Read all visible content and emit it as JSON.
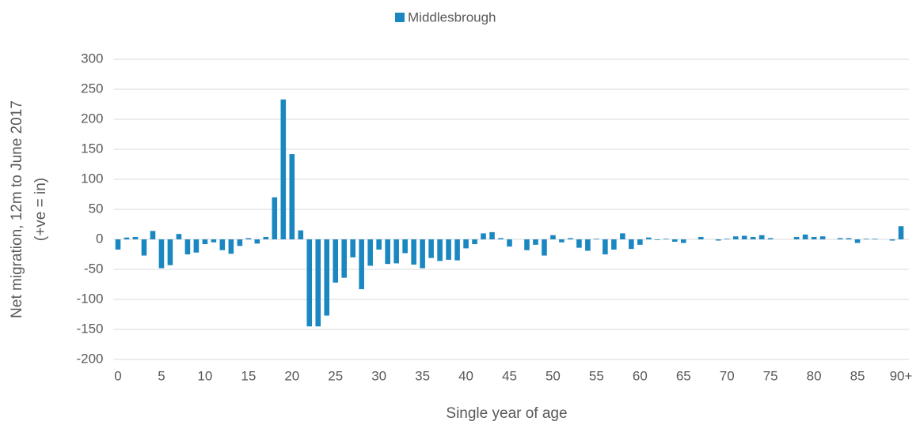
{
  "chart_data": {
    "type": "bar",
    "xlabel": "Single year of age",
    "ylabel": [
      "Net migration, 12m to June 2017",
      "(+ve = in)"
    ],
    "categories": [
      "0",
      null,
      null,
      null,
      null,
      "5",
      null,
      null,
      null,
      null,
      "10",
      null,
      null,
      null,
      null,
      "15",
      null,
      null,
      null,
      null,
      "20",
      null,
      null,
      null,
      null,
      "25",
      null,
      null,
      null,
      null,
      "30",
      null,
      null,
      null,
      null,
      "35",
      null,
      null,
      null,
      null,
      "40",
      null,
      null,
      null,
      null,
      "45",
      null,
      null,
      null,
      null,
      "50",
      null,
      null,
      null,
      null,
      "55",
      null,
      null,
      null,
      null,
      "60",
      null,
      null,
      null,
      null,
      "65",
      null,
      null,
      null,
      null,
      "70",
      null,
      null,
      null,
      null,
      "75",
      null,
      null,
      null,
      null,
      "80",
      null,
      null,
      null,
      null,
      "85",
      null,
      null,
      null,
      null,
      "90+"
    ],
    "series": [
      {
        "name": "Middlesbrough",
        "color": "#1b87c1",
        "values": [
          -17,
          3,
          4,
          -27,
          14,
          -48,
          -43,
          9,
          -25,
          -22,
          -8,
          -5,
          -18,
          -24,
          -11,
          2,
          -7,
          4,
          70,
          233,
          142,
          15,
          -145,
          -145,
          -127,
          -72,
          -64,
          -30,
          -83,
          -44,
          -17,
          -41,
          -40,
          -23,
          -42,
          -48,
          -31,
          -36,
          -34,
          -35,
          -15,
          -8,
          10,
          12,
          2,
          -12,
          0,
          -18,
          -9,
          -27,
          7,
          -5,
          2,
          -14,
          -19,
          1,
          -25,
          -17,
          10,
          -16,
          -9,
          3,
          -1,
          1,
          -4,
          -6,
          0,
          4,
          0,
          -2,
          1,
          5,
          6,
          4,
          7,
          2,
          0,
          0,
          4,
          8,
          4,
          5,
          0,
          2,
          2,
          -6,
          1,
          1,
          0,
          -2,
          22
        ]
      }
    ],
    "ylim": [
      -200,
      300
    ],
    "yticks": [
      -200,
      -150,
      -100,
      -50,
      0,
      50,
      100,
      150,
      200,
      250,
      300
    ],
    "grid": true,
    "legend": "top"
  }
}
